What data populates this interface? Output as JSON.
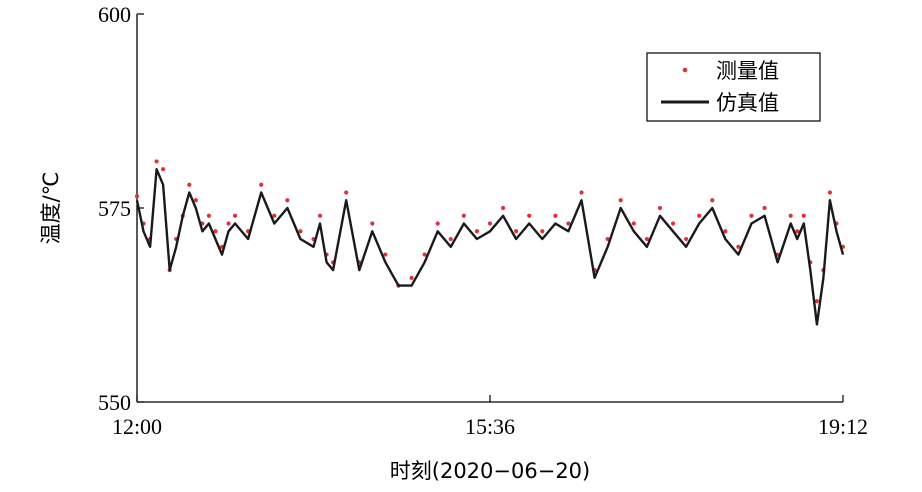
{
  "chart_data": {
    "type": "line",
    "title": "",
    "xlabel": "时刻(2020−06−20)",
    "ylabel": "温度/℃",
    "x_range": [
      "12:00",
      "19:12"
    ],
    "x_ticks": [
      "12:00",
      "15:36",
      "19:12"
    ],
    "ylim": [
      550,
      600
    ],
    "y_ticks": [
      550,
      575,
      600
    ],
    "grid": false,
    "legend_position": "top-right",
    "series": [
      {
        "name": "测量值",
        "style": "markers",
        "color": "#e0303a",
        "x": [
          "12:00",
          "12:04",
          "12:08",
          "12:12",
          "12:16",
          "12:20",
          "12:24",
          "12:28",
          "12:32",
          "12:36",
          "12:40",
          "12:44",
          "12:48",
          "12:52",
          "12:56",
          "13:00",
          "13:08",
          "13:16",
          "13:24",
          "13:32",
          "13:40",
          "13:48",
          "13:52",
          "13:56",
          "14:00",
          "14:08",
          "14:16",
          "14:24",
          "14:32",
          "14:40",
          "14:48",
          "14:56",
          "15:04",
          "15:12",
          "15:20",
          "15:28",
          "15:36",
          "15:44",
          "15:52",
          "16:00",
          "16:08",
          "16:16",
          "16:24",
          "16:32",
          "16:40",
          "16:48",
          "16:56",
          "17:04",
          "17:12",
          "17:20",
          "17:28",
          "17:36",
          "17:44",
          "17:52",
          "18:00",
          "18:08",
          "18:16",
          "18:24",
          "18:32",
          "18:40",
          "18:44",
          "18:48",
          "18:52",
          "18:56",
          "19:00",
          "19:04",
          "19:08",
          "19:12"
        ],
        "values": [
          576.5,
          573,
          571,
          581,
          580,
          567,
          571,
          574,
          578,
          576,
          573,
          574,
          572,
          570,
          573,
          574,
          572,
          578,
          574,
          576,
          572,
          571,
          574,
          569,
          568,
          577,
          568,
          573,
          569,
          565,
          566,
          569,
          573,
          571,
          574,
          572,
          573,
          575,
          572,
          574,
          572,
          574,
          573,
          577,
          567,
          571,
          576,
          573,
          571,
          575,
          573,
          571,
          574,
          576,
          572,
          570,
          574,
          575,
          569,
          574,
          572,
          574,
          568,
          563,
          567,
          577,
          573,
          570
        ]
      },
      {
        "name": "仿真值",
        "style": "line",
        "color": "#1a1a1a",
        "x": [
          "12:00",
          "12:04",
          "12:08",
          "12:12",
          "12:16",
          "12:20",
          "12:24",
          "12:28",
          "12:32",
          "12:36",
          "12:40",
          "12:44",
          "12:48",
          "12:52",
          "12:56",
          "13:00",
          "13:08",
          "13:16",
          "13:24",
          "13:32",
          "13:40",
          "13:48",
          "13:52",
          "13:56",
          "14:00",
          "14:08",
          "14:16",
          "14:24",
          "14:32",
          "14:40",
          "14:48",
          "14:56",
          "15:04",
          "15:12",
          "15:20",
          "15:28",
          "15:36",
          "15:44",
          "15:52",
          "16:00",
          "16:08",
          "16:16",
          "16:24",
          "16:32",
          "16:40",
          "16:48",
          "16:56",
          "17:04",
          "17:12",
          "17:20",
          "17:28",
          "17:36",
          "17:44",
          "17:52",
          "18:00",
          "18:08",
          "18:16",
          "18:24",
          "18:32",
          "18:40",
          "18:44",
          "18:48",
          "18:52",
          "18:56",
          "19:00",
          "19:04",
          "19:08",
          "19:12"
        ],
        "values": [
          576,
          572,
          570,
          580,
          578,
          567,
          570,
          574,
          577,
          575,
          572,
          573,
          571,
          569,
          572,
          573,
          571,
          577,
          573,
          575,
          571,
          570,
          573,
          568,
          567,
          576,
          567,
          572,
          568,
          565,
          565,
          568,
          572,
          570,
          573,
          571,
          572,
          574,
          571,
          573,
          571,
          573,
          572,
          576,
          566,
          570,
          575,
          572,
          570,
          574,
          572,
          570,
          573,
          575,
          571,
          569,
          573,
          574,
          568,
          573,
          571,
          573,
          567,
          560,
          566,
          576,
          572,
          569
        ]
      }
    ]
  }
}
